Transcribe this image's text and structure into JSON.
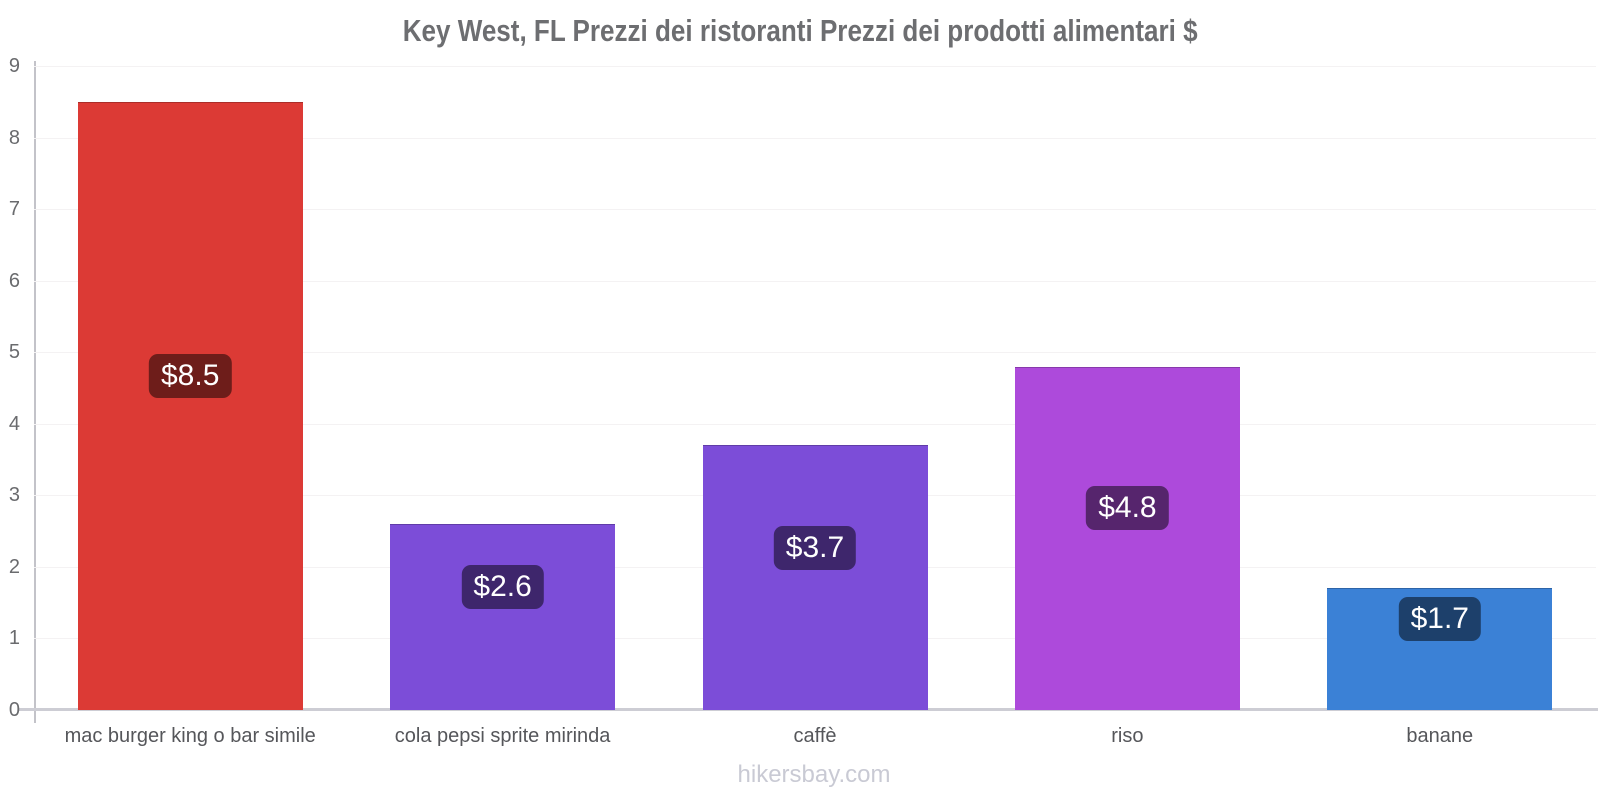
{
  "page": {
    "watermark": "hikersbay.com"
  },
  "colors": {
    "title_text": "#6d6e71",
    "axis_line": "#cdcdd4",
    "grid_line": "#f4f2f3",
    "tick_text": "#6a6b6e",
    "category_text": "#55565a",
    "watermark_text": "#c9cad4",
    "value_label_bg": "rgba(0,0,0,0.5)",
    "value_label_text": "#ffffff"
  },
  "chart_data": {
    "type": "bar",
    "title": "Key West, FL Prezzi dei ristoranti Prezzi dei prodotti alimentari $",
    "categories": [
      "mac burger king o bar simile",
      "cola pepsi sprite mirinda",
      "caffè",
      "riso",
      "banane"
    ],
    "values": [
      8.5,
      2.6,
      3.7,
      4.8,
      1.7
    ],
    "value_labels": [
      "$8.5",
      "$2.6",
      "$3.7",
      "$4.8",
      "$1.7"
    ],
    "bar_colors": [
      "#dc3a35",
      "#7c4dd8",
      "#7c4dd8",
      "#ad4adb",
      "#3b81d6"
    ],
    "currency": "$",
    "xlabel": "",
    "ylabel": "",
    "ylim": [
      0,
      9
    ],
    "yticks": [
      0,
      1,
      2,
      3,
      4,
      5,
      6,
      7,
      8,
      9
    ],
    "grid": true,
    "legend": false
  }
}
